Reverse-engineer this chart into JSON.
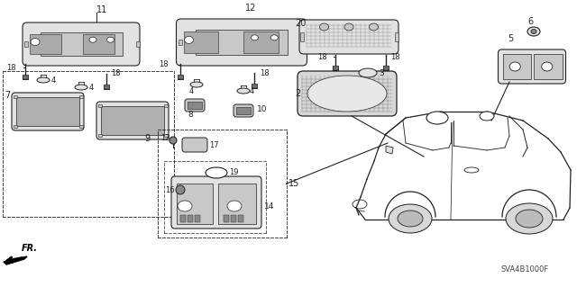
{
  "bg_color": "#ffffff",
  "diagram_code": "SVA4B1000F",
  "line_color": "#222222",
  "gray_fill": "#c8c8c8",
  "light_gray": "#e2e2e2",
  "dark_gray": "#888888"
}
